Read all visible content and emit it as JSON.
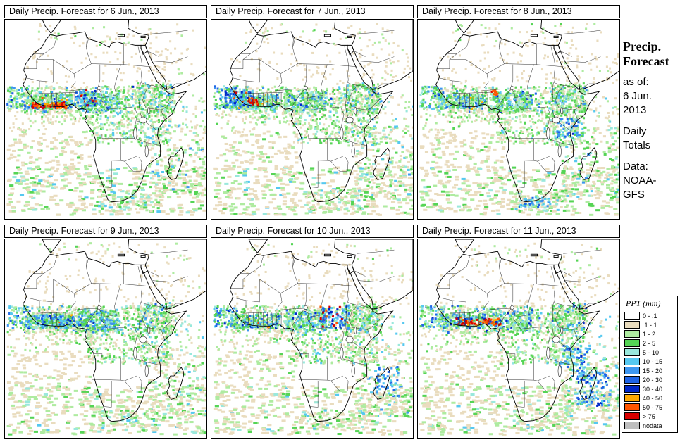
{
  "panels": [
    {
      "title": "Daily Precip. Forecast for 6 Jun., 2013"
    },
    {
      "title": "Daily Precip. Forecast for 7 Jun., 2013"
    },
    {
      "title": "Daily Precip. Forecast for 8 Jun., 2013"
    },
    {
      "title": "Daily Precip. Forecast for 9 Jun., 2013"
    },
    {
      "title": "Daily Precip. Forecast for 10 Jun., 2013"
    },
    {
      "title": "Daily Precip. Forecast for 11 Jun., 2013"
    }
  ],
  "info": {
    "title": "Precip. Forecast",
    "lines": [
      "as of:",
      "6 Jun.",
      "2013",
      "",
      "Daily",
      "Totals",
      "",
      "Data:",
      "NOAA-",
      "GFS"
    ]
  },
  "legend": {
    "title": "PPT (mm)",
    "entries": [
      {
        "label": "0 - .1",
        "color": "#FFFFFF"
      },
      {
        "label": ".1 - 1",
        "color": "#E9DCBE"
      },
      {
        "label": "1 - 2",
        "color": "#AEEBA0"
      },
      {
        "label": "2 - 5",
        "color": "#55D455"
      },
      {
        "label": "5 - 10",
        "color": "#99E8DC"
      },
      {
        "label": "10 - 15",
        "color": "#55C8F0"
      },
      {
        "label": "15 - 20",
        "color": "#3C96F0"
      },
      {
        "label": "20 - 30",
        "color": "#1E64E6"
      },
      {
        "label": "30 - 40",
        "color": "#0028C8"
      },
      {
        "label": "40 - 50",
        "color": "#FFAA00"
      },
      {
        "label": "50 - 75",
        "color": "#FF5500"
      },
      {
        "label": "> 75",
        "color": "#D70000"
      },
      {
        "label": "nodata",
        "color": "#BEBEBE"
      }
    ]
  },
  "chart_data": {
    "type": "map",
    "region": "Africa",
    "variable": "Daily precipitation forecast totals (mm)",
    "forecast_issued": "6 Jun. 2013",
    "data_source": "NOAA-GFS",
    "panel_dates": [
      "6 Jun., 2013",
      "7 Jun., 2013",
      "8 Jun., 2013",
      "9 Jun., 2013",
      "10 Jun., 2013",
      "11 Jun., 2013"
    ],
    "scale_mm": [
      "0 - .1",
      ".1 - 1",
      "1 - 2",
      "2 - 5",
      "5 - 10",
      "10 - 15",
      "15 - 20",
      "20 - 30",
      "30 - 40",
      "40 - 50",
      "50 - 75",
      "> 75",
      "nodata"
    ]
  }
}
